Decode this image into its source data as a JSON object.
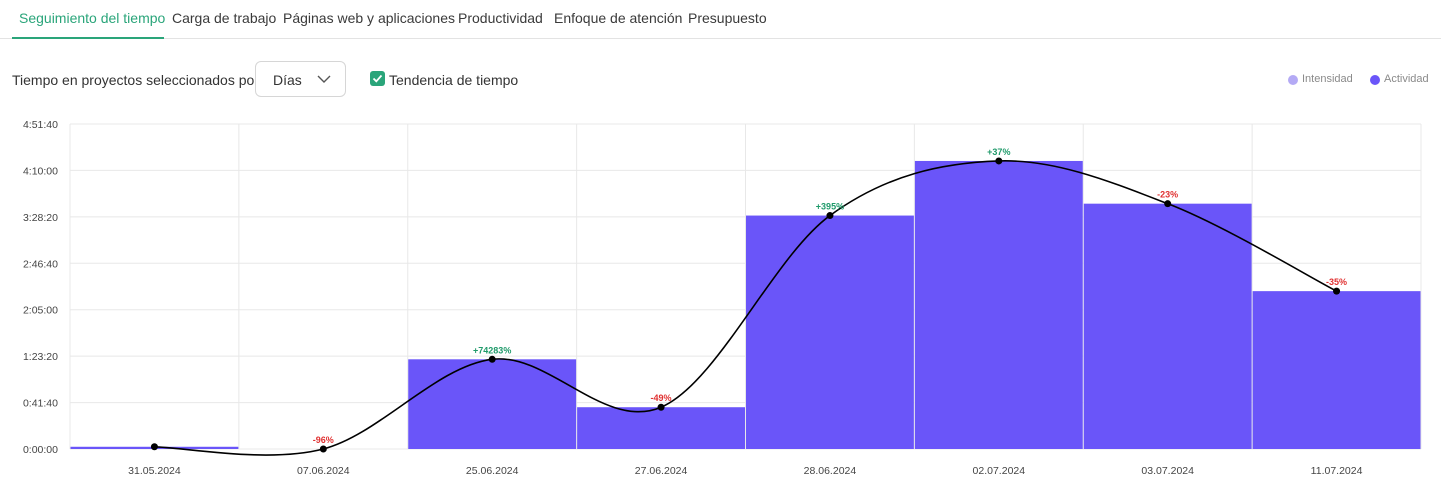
{
  "tabs": [
    {
      "label": "Seguimiento del tiempo",
      "active": true
    },
    {
      "label": "Carga de trabajo"
    },
    {
      "label": "Páginas web y aplicaciones"
    },
    {
      "label": "Productividad"
    },
    {
      "label": "Enfoque de atención"
    },
    {
      "label": "Presupuesto"
    }
  ],
  "controls": {
    "label": "Tiempo en proyectos seleccionados por",
    "select_value": "Días",
    "trend_checkbox_label": "Tendencia de tiempo",
    "trend_checked": true
  },
  "legend": [
    {
      "label": "Intensidad",
      "color": "#b4aaf5"
    },
    {
      "label": "Actividad",
      "color": "#6a55f9"
    }
  ],
  "colors": {
    "accent": "#2aa57a",
    "bar": "#6a55f9",
    "positive": "#1f9a6a",
    "negative": "#e03131",
    "trend_line": "#000000"
  },
  "chart_data": {
    "type": "bar",
    "categories": [
      "31.05.2024",
      "07.06.2024",
      "25.06.2024",
      "27.06.2024",
      "28.06.2024",
      "02.07.2024",
      "03.07.2024",
      "11.07.2024"
    ],
    "series": [
      {
        "name": "Actividad",
        "values_seconds": [
          120,
          0,
          4830,
          2250,
          12570,
          15510,
          13210,
          8500
        ]
      }
    ],
    "trend_changes": [
      "",
      "-96%",
      "+74283%",
      "-49%",
      "+395%",
      "+37%",
      "-23%",
      "-35%"
    ],
    "y_ticks": [
      "0:00:00",
      "0:41:40",
      "1:23:20",
      "2:05:00",
      "2:46:40",
      "3:28:20",
      "4:10:00",
      "4:51:40"
    ],
    "ylim_seconds": [
      0,
      17500
    ],
    "y_tick_step_seconds": 2500,
    "grid": true,
    "legend_position": "top-right"
  }
}
